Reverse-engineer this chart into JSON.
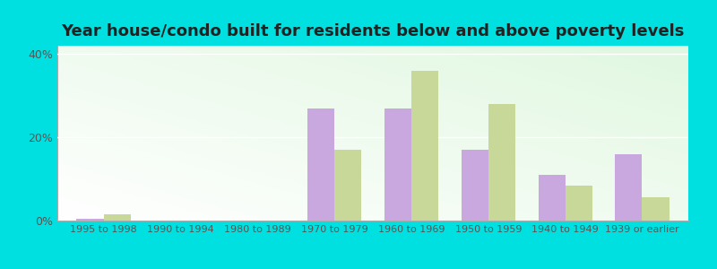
{
  "title": "Year house/condo built for residents below and above poverty levels",
  "categories": [
    "1995 to 1998",
    "1990 to 1994",
    "1980 to 1989",
    "1970 to 1979",
    "1960 to 1969",
    "1950 to 1959",
    "1940 to 1949",
    "1939 or earlier"
  ],
  "below_poverty": [
    0.5,
    0.0,
    0.0,
    27.0,
    27.0,
    17.0,
    11.0,
    16.0
  ],
  "above_poverty": [
    1.5,
    0.0,
    0.0,
    17.0,
    36.0,
    28.0,
    8.5,
    5.5
  ],
  "below_color": "#c9a8e0",
  "above_color": "#c8d898",
  "ylim": [
    0,
    42
  ],
  "yticks": [
    0,
    20,
    40
  ],
  "ytick_labels": [
    "0%",
    "20%",
    "40%"
  ],
  "outer_bg": "#00e0e0",
  "bar_width": 0.35,
  "title_fontsize": 13,
  "tick_fontsize": 8,
  "legend_fontsize": 9
}
